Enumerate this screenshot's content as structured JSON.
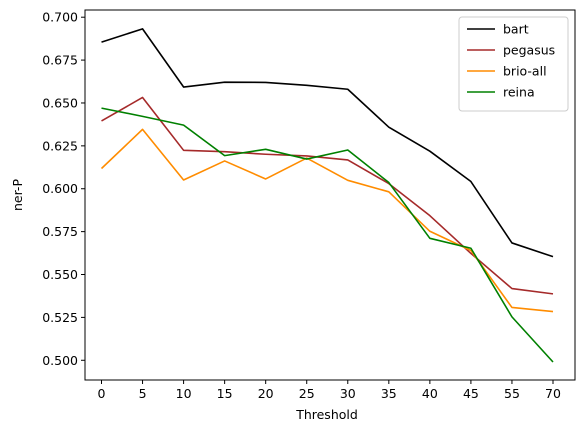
{
  "chart_data": {
    "type": "line",
    "title": "",
    "xlabel": "Threshold",
    "ylabel": "ner-P",
    "categories": [
      "0",
      "5",
      "10",
      "15",
      "20",
      "25",
      "30",
      "35",
      "40",
      "45",
      "55",
      "70"
    ],
    "yticks": [
      "0.500",
      "0.525",
      "0.550",
      "0.575",
      "0.600",
      "0.625",
      "0.650",
      "0.675",
      "0.700"
    ],
    "ylim": [
      0.4885,
      0.7042
    ],
    "grid": false,
    "legend_position": "top-right",
    "series": [
      {
        "name": "bart",
        "color": "#000000",
        "values": [
          0.6855,
          0.6932,
          0.6593,
          0.6621,
          0.662,
          0.6603,
          0.658,
          0.6359,
          0.6219,
          0.6042,
          0.5684,
          0.5604
        ]
      },
      {
        "name": "pegasus",
        "color": "#a52a2a",
        "values": [
          0.6395,
          0.6532,
          0.6224,
          0.6216,
          0.6201,
          0.6191,
          0.6168,
          0.603,
          0.5843,
          0.5623,
          0.5418,
          0.5387
        ]
      },
      {
        "name": "brio-all",
        "color": "#ff8c00",
        "values": [
          0.6118,
          0.6346,
          0.6051,
          0.6162,
          0.6057,
          0.6179,
          0.6049,
          0.5982,
          0.5752,
          0.564,
          0.5308,
          0.5284
        ]
      },
      {
        "name": "reina",
        "color": "#008000",
        "values": [
          0.647,
          0.6422,
          0.6371,
          0.6193,
          0.623,
          0.6173,
          0.6226,
          0.6036,
          0.5711,
          0.5653,
          0.5253,
          0.499
        ]
      }
    ]
  }
}
